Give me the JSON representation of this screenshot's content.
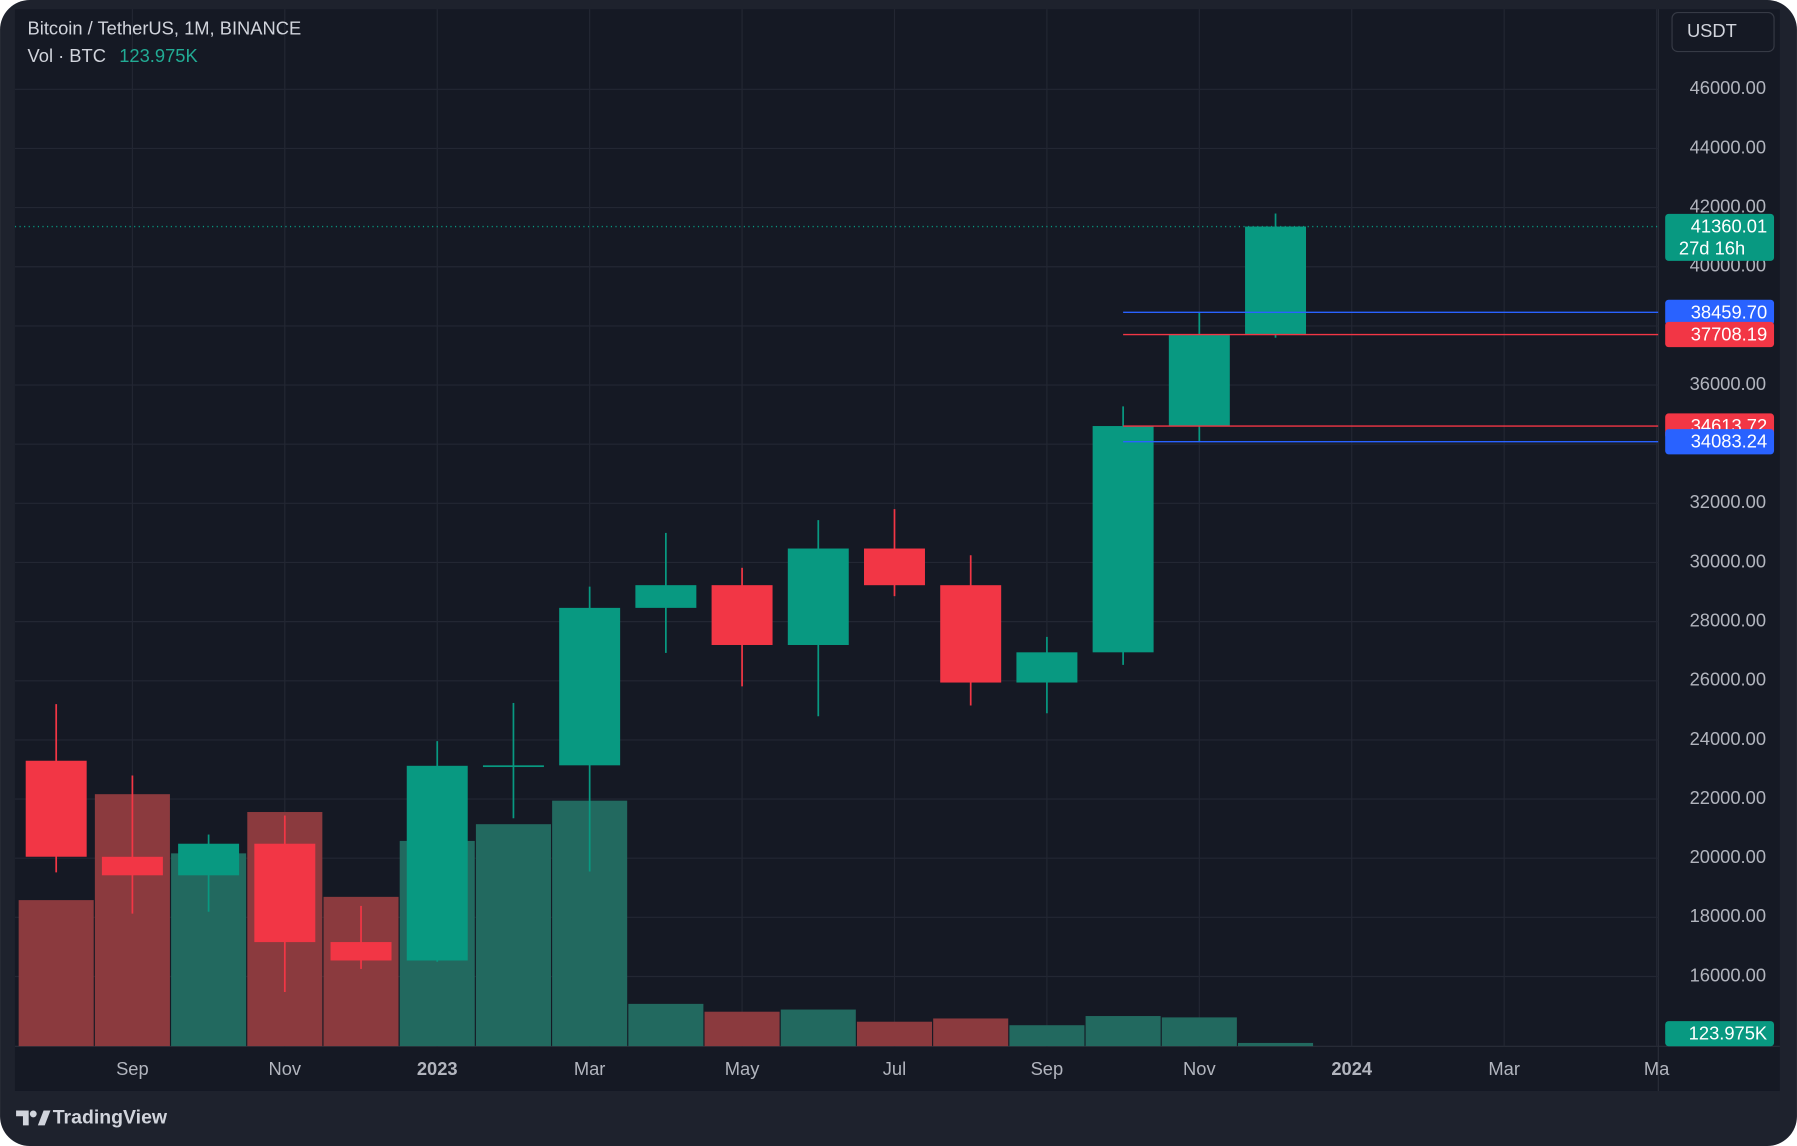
{
  "chart_data": {
    "type": "candlestick",
    "title": "Bitcoin / TetherUS, 1M, BINANCE",
    "currency": "USDT",
    "brand": "TradingView",
    "categories": [
      null,
      "Sep",
      null,
      "Nov",
      null,
      "2023",
      null,
      "Mar",
      null,
      "May",
      null,
      "Jul",
      null,
      "Sep",
      null,
      "Nov",
      null,
      "2024",
      null,
      "Mar",
      null,
      "Ma"
    ],
    "open": [
      23296,
      20048,
      19422,
      20490,
      17165,
      16541,
      23125,
      23141,
      28465,
      29233,
      27210,
      30472,
      29232,
      25941,
      26962,
      34613.72,
      37708.19,
      null,
      null,
      null,
      null,
      null
    ],
    "high": [
      25211,
      22799,
      20800,
      21446,
      18387,
      23960,
      25250,
      29184,
      31000,
      29820,
      31431,
      31804,
      30244,
      27484,
      35280,
      38459.7,
      41800,
      null,
      null,
      null,
      null,
      null
    ],
    "low": [
      19520,
      18125,
      18190,
      15476,
      16256,
      16499,
      21351,
      19549,
      26942,
      25811,
      24800,
      28861,
      25166,
      24901,
      26538,
      34083.24,
      37600,
      null,
      null,
      null,
      null,
      null
    ],
    "close": [
      20050,
      19422,
      20490,
      17164,
      16542,
      23125,
      23141,
      28465,
      29233,
      27210,
      30472,
      29232,
      25940,
      26962,
      34613.72,
      37708.19,
      41360.01,
      null,
      null,
      null,
      null,
      null
    ],
    "up_color": "#089981",
    "down_color": "#f23645",
    "volume": {
      "name": "Vol · BTC",
      "values": [
        5410000,
        9330000,
        7140000,
        8670000,
        5530000,
        7600000,
        8220000,
        9090000,
        1570000,
        1280000,
        1360000,
        910000,
        1030000,
        780000,
        1120000,
        1070000,
        123975,
        null,
        null,
        null,
        null,
        null
      ],
      "value_labels": [
        null,
        null,
        null,
        null,
        null,
        null,
        null,
        null,
        null,
        null,
        null,
        null,
        null,
        null,
        null,
        null,
        "123.975K",
        null,
        null,
        null,
        null,
        null
      ],
      "up_color": "#22695f",
      "down_color": "#8b3a3e"
    },
    "ylim": [
      13640,
      48710
    ],
    "yticks": [
      {
        "value": 16000,
        "label": "16000.00"
      },
      {
        "value": 18000,
        "label": "18000.00"
      },
      {
        "value": 20000,
        "label": "20000.00"
      },
      {
        "value": 22000,
        "label": "22000.00"
      },
      {
        "value": 24000,
        "label": "24000.00"
      },
      {
        "value": 26000,
        "label": "26000.00"
      },
      {
        "value": 28000,
        "label": "28000.00"
      },
      {
        "value": 30000,
        "label": "30000.00"
      },
      {
        "value": 32000,
        "label": "32000.00"
      },
      {
        "value": 34000,
        "label": "34000.00"
      },
      {
        "value": 36000,
        "label": "36000.00"
      },
      {
        "value": 38000,
        "label": "38000.00"
      },
      {
        "value": 40000,
        "label": "40000.00"
      },
      {
        "value": 42000,
        "label": "42000.00"
      },
      {
        "value": 44000,
        "label": "44000.00"
      },
      {
        "value": 46000,
        "label": "46000.00"
      }
    ],
    "grid": true,
    "price_lines": [
      {
        "value": 38459.7,
        "label": "38459.70",
        "color": "#2962ff"
      },
      {
        "value": 37708.19,
        "label": "37708.19",
        "color": "#f23645"
      },
      {
        "value": 34613.72,
        "label": "34613.72",
        "color": "#f23645"
      },
      {
        "value": 34083.24,
        "label": "34083.24",
        "color": "#2962ff"
      }
    ],
    "last_price": {
      "value": 41360.01,
      "label": "41360.01",
      "countdown": "27d 16h",
      "color": "#089981"
    }
  }
}
